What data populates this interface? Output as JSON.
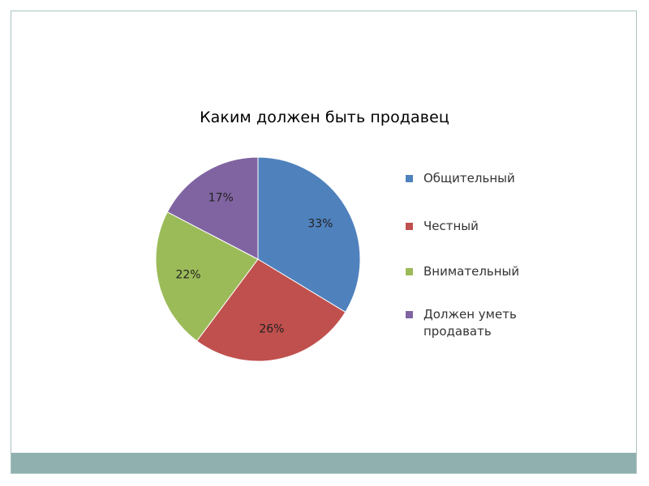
{
  "chart_data": {
    "type": "pie",
    "title": "Каким должен быть продавец",
    "legend_position": "right",
    "slices": [
      {
        "label": "Общительный",
        "value": 33,
        "display": "33%",
        "color": "#4f81bd"
      },
      {
        "label": "Честный",
        "value": 26,
        "display": "26%",
        "color": "#c0504d"
      },
      {
        "label": "Внимательный",
        "value": 22,
        "display": "22%",
        "color": "#9bbb59"
      },
      {
        "label": "Должен уметь продавать",
        "value": 17,
        "display": "17%",
        "color": "#8064a2"
      }
    ]
  },
  "theme": {
    "frame_border": "#a9c4c2",
    "footer_band": "#8fb0ae"
  }
}
